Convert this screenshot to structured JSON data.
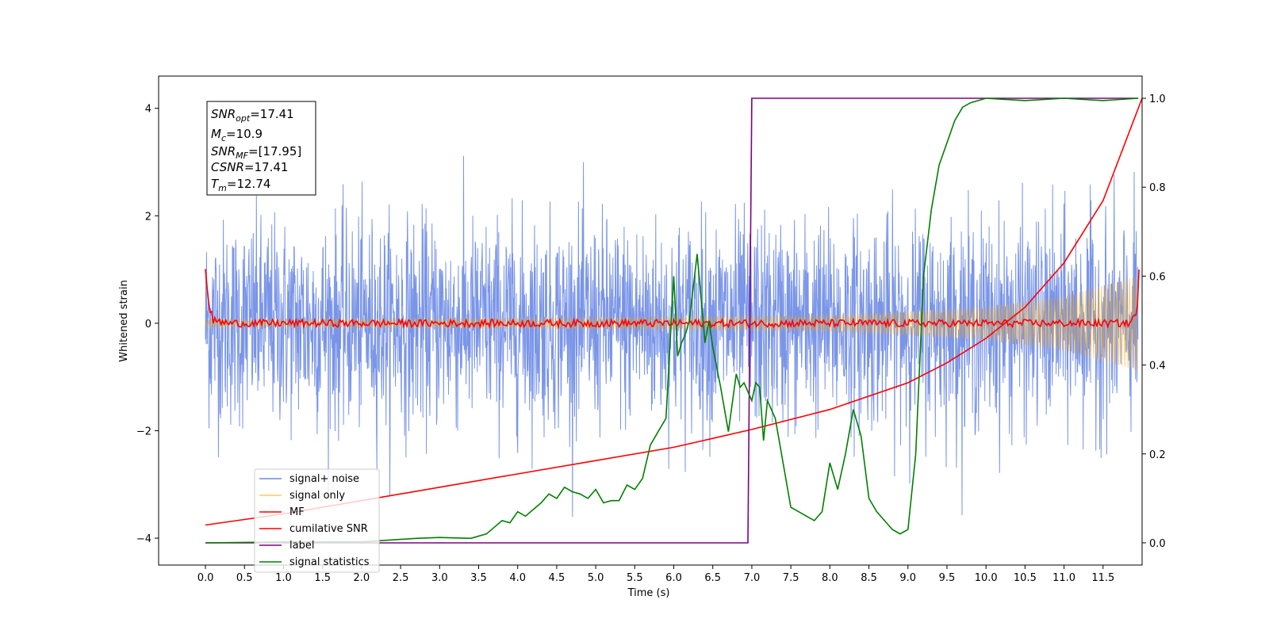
{
  "chart_data": {
    "type": "line",
    "xlabel": "Time (s)",
    "ylabel": "Whitened strain",
    "xlim": [
      -0.6,
      12.0
    ],
    "ylim_left": [
      -4.5,
      4.6
    ],
    "ylim_right": [
      -0.05,
      1.05
    ],
    "x_ticks": [
      "0.0",
      "0.5",
      "1.0",
      "1.5",
      "2.0",
      "2.5",
      "3.0",
      "3.5",
      "4.0",
      "4.5",
      "5.0",
      "5.5",
      "6.0",
      "6.5",
      "7.0",
      "7.5",
      "8.0",
      "8.5",
      "9.0",
      "9.5",
      "10.0",
      "10.5",
      "11.0",
      "11.5"
    ],
    "y_ticks_left": [
      "−4",
      "−2",
      "0",
      "2",
      "4"
    ],
    "y_ticks_right": [
      "0.0",
      "0.2",
      "0.4",
      "0.6",
      "0.8",
      "1.0"
    ],
    "legend_position": "lower-left",
    "legend": [
      "signal+ noise",
      "signal only",
      "MF",
      "cumilative SNR",
      "label",
      "signal statistics"
    ],
    "annotation": {
      "snr_opt": {
        "sym": "SNR",
        "sub": "opt",
        "val": "=17.41"
      },
      "mc": {
        "sym": "M",
        "sub": "c",
        "val": "=10.9"
      },
      "snr_mf": {
        "sym": "SNR",
        "sub": "MF",
        "val": "=[17.95]"
      },
      "csnr": {
        "sym": "CSNR",
        "sub": "",
        "val": "=17.41"
      },
      "tm": {
        "sym": "T",
        "sub": "m",
        "val": "=12.74"
      }
    },
    "colors": {
      "noise": "#6b8ae6",
      "signal": "#ffa500",
      "mf": "#ff0000",
      "csnr": "#ff0000",
      "label": "#800080",
      "stats": "#008000"
    },
    "series": [
      {
        "name": "signal+ noise",
        "axis": "left",
        "description": "noise band approx ±1 with spikes up to ±4 over 0–12 s"
      },
      {
        "name": "signal only",
        "axis": "left",
        "envelope": [
          [
            0.0,
            0.08
          ],
          [
            4.0,
            0.1
          ],
          [
            8.0,
            0.15
          ],
          [
            10.0,
            0.3
          ],
          [
            11.0,
            0.5
          ],
          [
            12.0,
            0.9
          ]
        ]
      },
      {
        "name": "MF",
        "axis": "left",
        "x": [
          0.0,
          0.05,
          0.1,
          0.3,
          11.85,
          11.95,
          12.0
        ],
        "y": [
          1.0,
          0.3,
          0.05,
          0.0,
          0.0,
          0.3,
          1.0
        ]
      },
      {
        "name": "cumilative SNR",
        "axis": "right",
        "x": [
          0.0,
          1.0,
          2.0,
          3.0,
          4.0,
          5.0,
          6.0,
          7.0,
          8.0,
          9.0,
          9.5,
          10.0,
          10.5,
          11.0,
          11.5,
          12.0
        ],
        "y": [
          0.04,
          0.065,
          0.095,
          0.125,
          0.155,
          0.185,
          0.215,
          0.255,
          0.3,
          0.36,
          0.405,
          0.46,
          0.53,
          0.63,
          0.77,
          1.0
        ]
      },
      {
        "name": "label",
        "axis": "right",
        "x": [
          0.0,
          6.95,
          7.0,
          11.95
        ],
        "y": [
          0.0,
          0.0,
          1.0,
          1.0
        ]
      },
      {
        "name": "signal statistics",
        "axis": "right",
        "x": [
          0.0,
          1.0,
          2.0,
          2.7,
          3.0,
          3.4,
          3.6,
          3.7,
          3.8,
          3.9,
          4.0,
          4.1,
          4.2,
          4.3,
          4.4,
          4.5,
          4.6,
          4.7,
          4.8,
          4.9,
          5.0,
          5.1,
          5.2,
          5.3,
          5.4,
          5.5,
          5.6,
          5.7,
          5.8,
          5.9,
          6.0,
          6.05,
          6.1,
          6.15,
          6.2,
          6.3,
          6.4,
          6.45,
          6.5,
          6.6,
          6.7,
          6.8,
          6.85,
          6.9,
          7.0,
          7.05,
          7.1,
          7.15,
          7.2,
          7.3,
          7.4,
          7.5,
          7.6,
          7.7,
          7.8,
          7.9,
          8.0,
          8.1,
          8.2,
          8.3,
          8.4,
          8.5,
          8.6,
          8.7,
          8.8,
          8.9,
          9.0,
          9.1,
          9.2,
          9.3,
          9.4,
          9.5,
          9.6,
          9.7,
          9.8,
          10.0,
          10.5,
          11.0,
          11.5,
          11.95
        ],
        "y": [
          0.0,
          0.002,
          0.002,
          0.01,
          0.012,
          0.01,
          0.02,
          0.035,
          0.05,
          0.045,
          0.07,
          0.06,
          0.075,
          0.09,
          0.11,
          0.1,
          0.125,
          0.115,
          0.11,
          0.1,
          0.12,
          0.09,
          0.095,
          0.095,
          0.13,
          0.12,
          0.145,
          0.22,
          0.25,
          0.28,
          0.6,
          0.42,
          0.45,
          0.47,
          0.5,
          0.65,
          0.45,
          0.5,
          0.44,
          0.35,
          0.25,
          0.38,
          0.35,
          0.36,
          0.32,
          0.36,
          0.35,
          0.23,
          0.32,
          0.28,
          0.18,
          0.08,
          0.07,
          0.06,
          0.05,
          0.07,
          0.18,
          0.12,
          0.2,
          0.3,
          0.24,
          0.1,
          0.07,
          0.05,
          0.03,
          0.02,
          0.03,
          0.2,
          0.6,
          0.75,
          0.85,
          0.9,
          0.95,
          0.98,
          0.99,
          1.0,
          0.995,
          1.0,
          0.995,
          1.0
        ]
      }
    ]
  }
}
